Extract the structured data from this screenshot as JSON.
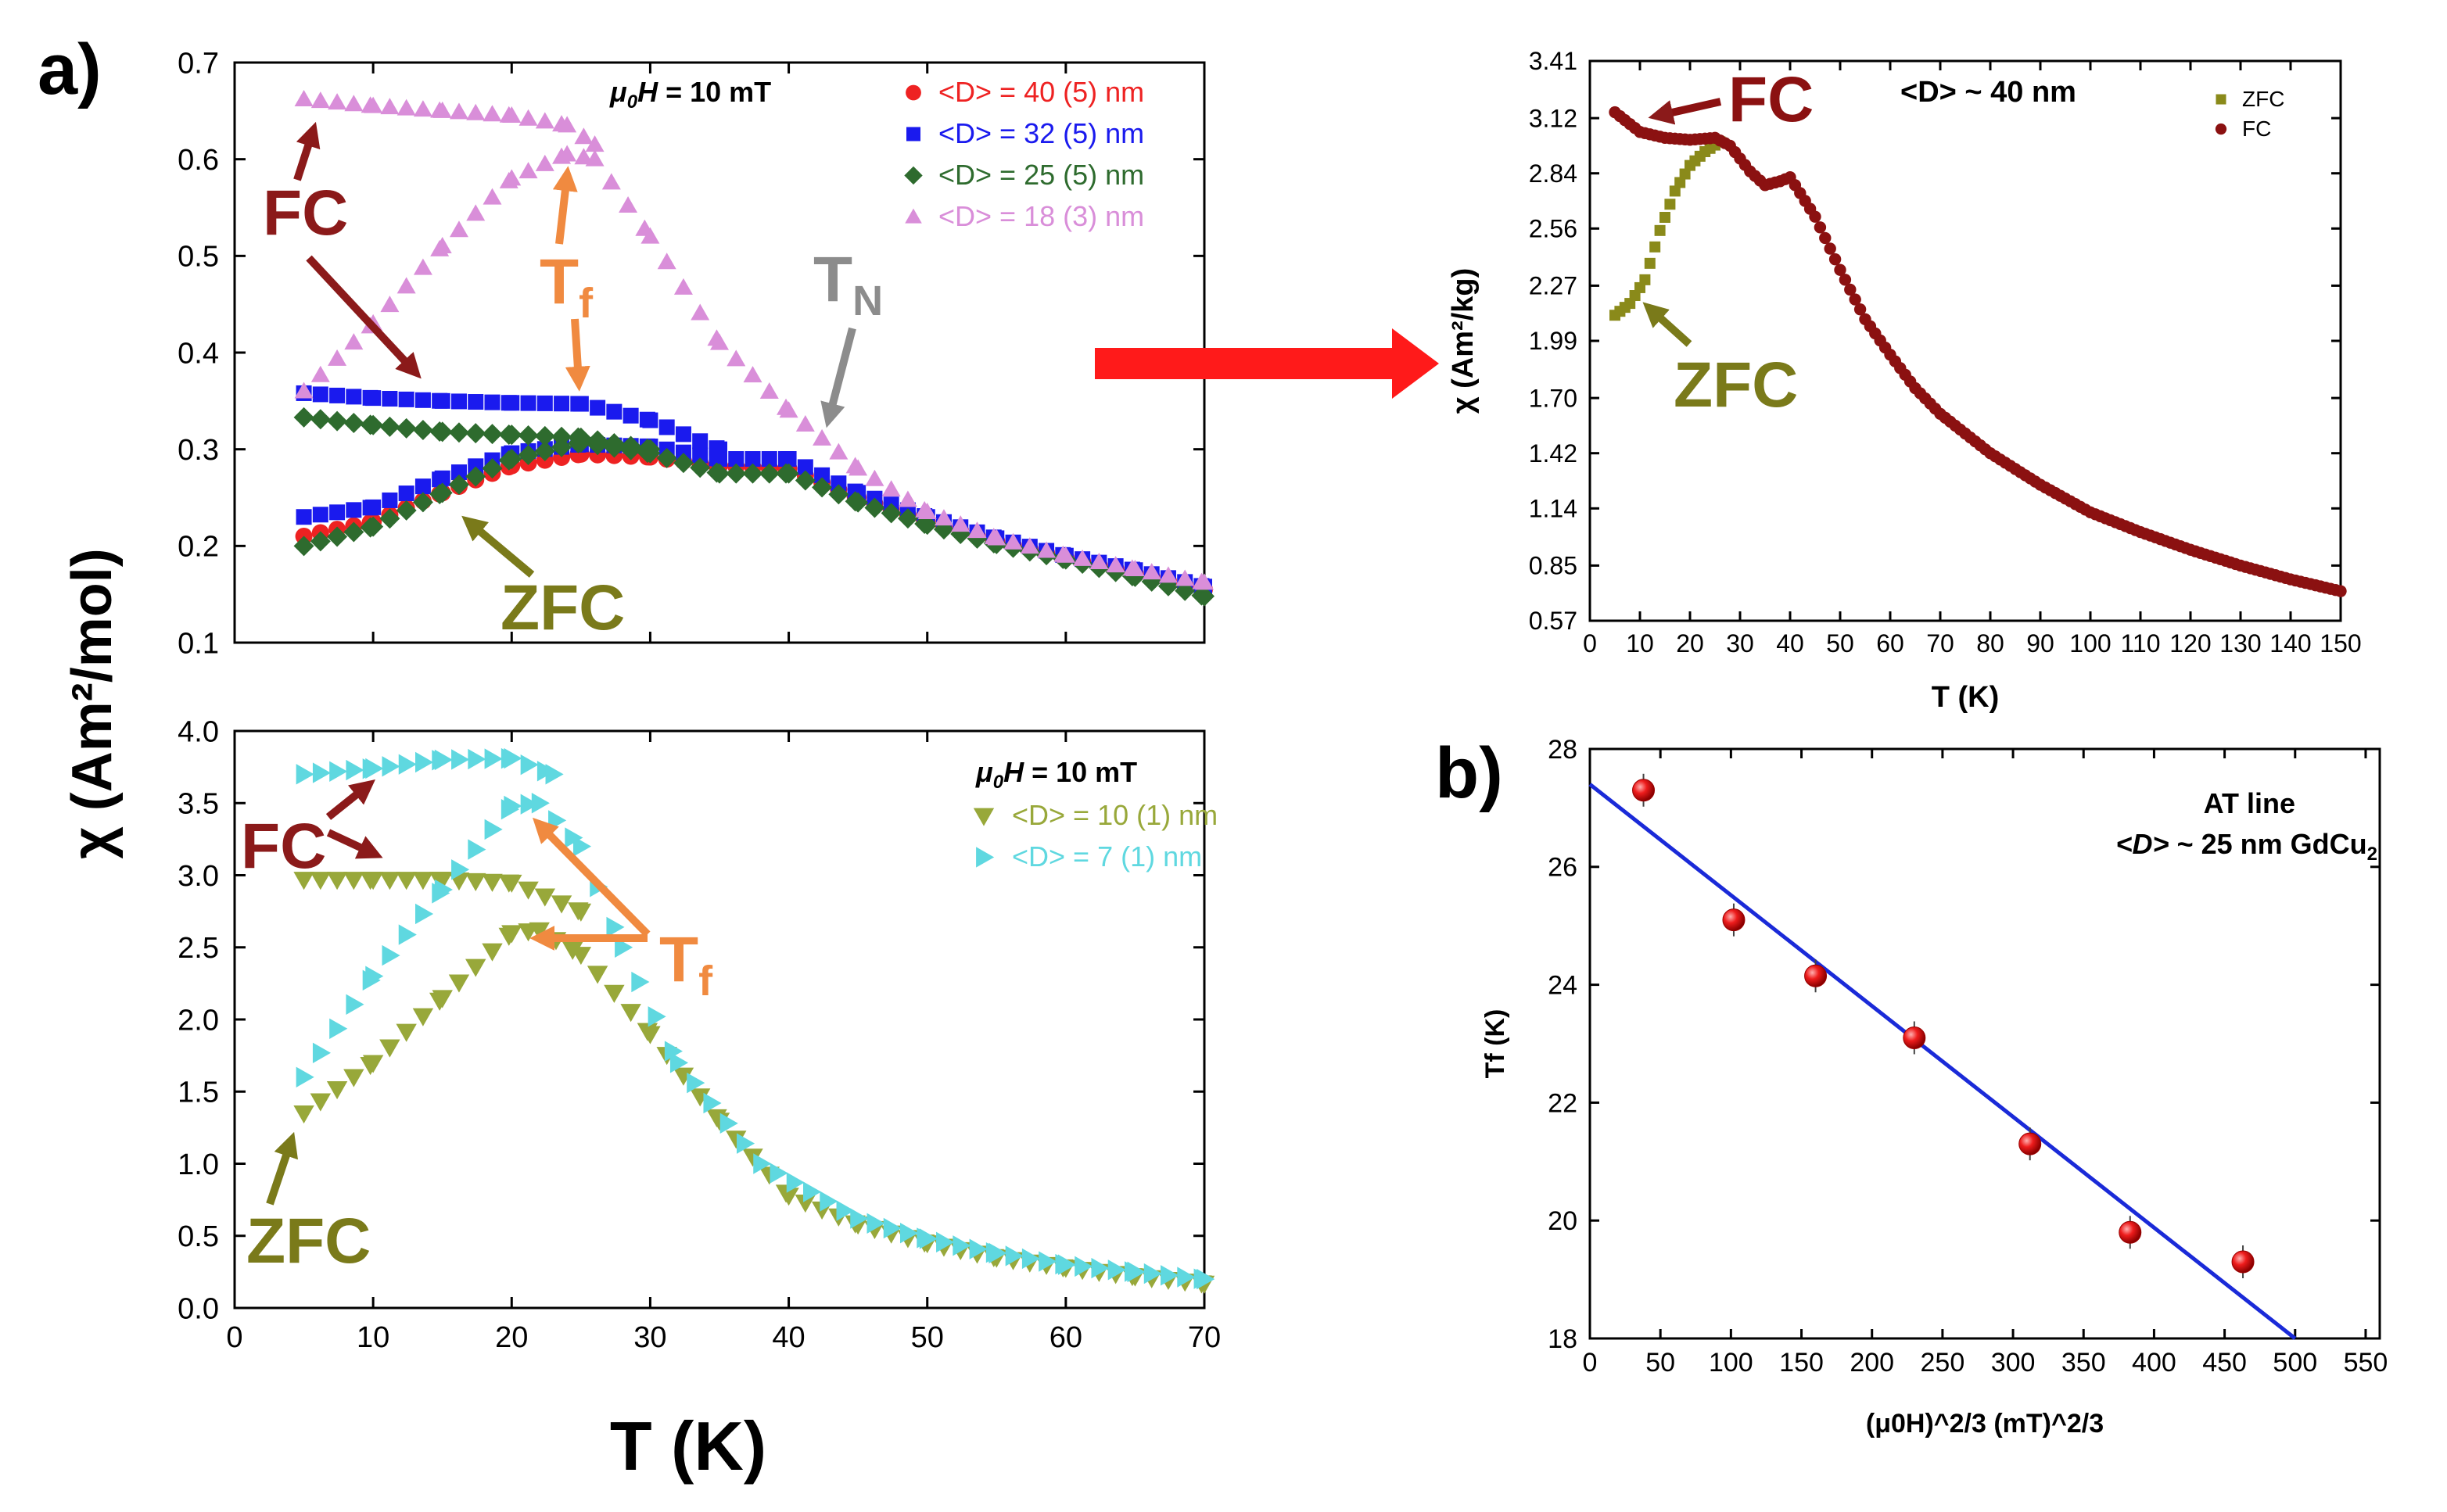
{
  "figure": {
    "panel_a_label": "a)",
    "panel_b_label": "b)",
    "shared_ylabel_a": "χ (Am²/mol)",
    "shared_xlabel_a": "T (K)",
    "colors": {
      "d40": "#ee2222",
      "d32": "#1a1aee",
      "d25": "#2e6b2e",
      "d18": "#d98ed9",
      "d10": "#98a83a",
      "d7": "#5fd8e0",
      "fc_arrow": "#8b1a1a",
      "zfc_arrow": "#7a7a1a",
      "tf_arrow": "#f08a40",
      "tn_arrow": "#8c8c8c",
      "big_arrow": "#ff1a1a",
      "fit_line": "#1a2ad8",
      "tf_points": "#ee1c1c",
      "zfc_b": "#8a8a1a",
      "fc_b": "#8b1111"
    }
  },
  "chart_data": [
    {
      "id": "a_top",
      "type": "scatter",
      "title": "",
      "xlabel": "T (K)",
      "ylabel": "χ (Am²/mol)",
      "xlim": [
        0,
        70
      ],
      "ylim": [
        0.1,
        0.7
      ],
      "xticks": [
        0,
        10,
        20,
        30,
        40,
        50,
        60,
        70
      ],
      "yticks": [
        "0.1",
        "0.2",
        "0.3",
        "0.4",
        "0.5",
        "0.6",
        "0.7"
      ],
      "show_xticklabels": false,
      "field_label": "μ0H = 10 mT",
      "legend": [
        "<D> = 40 (5) nm",
        "<D> = 32 (5) nm",
        "<D> = 25 (5) nm",
        "<D> = 18 (3) nm"
      ],
      "annotations": {
        "fc": "FC",
        "zfc": "ZFC",
        "tf": "Tf",
        "tn": "TN"
      },
      "series": [
        {
          "name": "<D> = 40 (5) nm ZFC",
          "marker": "circle",
          "color": "#ee2222",
          "points": [
            [
              5,
              0.21
            ],
            [
              10,
              0.225
            ],
            [
              15,
              0.255
            ],
            [
              20,
              0.283
            ],
            [
              25,
              0.295
            ],
            [
              30,
              0.292
            ],
            [
              35,
              0.283
            ],
            [
              40,
              0.28
            ],
            [
              45,
              0.25
            ],
            [
              50,
              0.225
            ],
            [
              55,
              0.205
            ],
            [
              60,
              0.188
            ],
            [
              65,
              0.172
            ],
            [
              70,
              0.155
            ]
          ]
        },
        {
          "name": "<D> = 32 (5) nm ZFC",
          "marker": "square",
          "color": "#1a1aee",
          "points": [
            [
              5,
              0.23
            ],
            [
              10,
              0.24
            ],
            [
              15,
              0.27
            ],
            [
              20,
              0.296
            ],
            [
              25,
              0.305
            ],
            [
              30,
              0.303
            ],
            [
              35,
              0.29
            ],
            [
              40,
              0.29
            ],
            [
              45,
              0.255
            ],
            [
              50,
              0.23
            ],
            [
              55,
              0.208
            ],
            [
              60,
              0.19
            ],
            [
              65,
              0.175
            ],
            [
              70,
              0.158
            ]
          ]
        },
        {
          "name": "<D> = 32 (5) nm FC",
          "marker": "square",
          "color": "#1a1aee",
          "points": [
            [
              5,
              0.358
            ],
            [
              10,
              0.353
            ],
            [
              15,
              0.35
            ],
            [
              20,
              0.348
            ],
            [
              25,
              0.347
            ],
            [
              30,
              0.33
            ],
            [
              35,
              0.3
            ]
          ]
        },
        {
          "name": "<D> = 25 (5) nm ZFC",
          "marker": "diamond",
          "color": "#2e6b2e",
          "points": [
            [
              5,
              0.2
            ],
            [
              10,
              0.22
            ],
            [
              15,
              0.255
            ],
            [
              20,
              0.29
            ],
            [
              25,
              0.307
            ],
            [
              30,
              0.296
            ],
            [
              35,
              0.275
            ],
            [
              40,
              0.275
            ],
            [
              45,
              0.245
            ],
            [
              50,
              0.222
            ],
            [
              55,
              0.202
            ],
            [
              60,
              0.186
            ],
            [
              65,
              0.168
            ],
            [
              70,
              0.148
            ]
          ]
        },
        {
          "name": "<D> = 25 (5) nm FC",
          "marker": "diamond",
          "color": "#2e6b2e",
          "points": [
            [
              5,
              0.333
            ],
            [
              10,
              0.325
            ],
            [
              15,
              0.318
            ],
            [
              20,
              0.315
            ],
            [
              25,
              0.312
            ],
            [
              30,
              0.3
            ]
          ]
        },
        {
          "name": "<D> = 18 (3) nm ZFC",
          "marker": "triangle",
          "color": "#d98ed9",
          "points": [
            [
              5,
              0.36
            ],
            [
              10,
              0.43
            ],
            [
              15,
              0.51
            ],
            [
              20,
              0.58
            ],
            [
              24,
              0.605
            ],
            [
              26,
              0.6
            ],
            [
              30,
              0.52
            ],
            [
              35,
              0.41
            ],
            [
              40,
              0.34
            ],
            [
              45,
              0.28
            ],
            [
              50,
              0.235
            ],
            [
              55,
              0.208
            ],
            [
              60,
              0.19
            ],
            [
              65,
              0.176
            ],
            [
              70,
              0.162
            ]
          ]
        },
        {
          "name": "<D> = 18 (3) nm FC",
          "marker": "triangle",
          "color": "#d98ed9",
          "points": [
            [
              5,
              0.662
            ],
            [
              10,
              0.655
            ],
            [
              15,
              0.65
            ],
            [
              20,
              0.645
            ],
            [
              24,
              0.635
            ],
            [
              26,
              0.615
            ]
          ]
        }
      ]
    },
    {
      "id": "a_bottom",
      "type": "scatter",
      "xlabel": "T (K)",
      "ylabel": "χ (Am²/mol)",
      "xlim": [
        0,
        70
      ],
      "ylim": [
        0,
        4
      ],
      "xticks": [
        0,
        10,
        20,
        30,
        40,
        50,
        60,
        70
      ],
      "xticklabels": [
        "0",
        "10",
        "20",
        "30",
        "40",
        "50",
        "60",
        "70"
      ],
      "yticks": [
        "0.0",
        "0.5",
        "1.0",
        "1.5",
        "2.0",
        "2.5",
        "3.0",
        "3.5",
        "4.0"
      ],
      "field_label": "μ0H = 10 mT",
      "legend": [
        "<D> = 10 (1) nm",
        "<D> = 7 (1) nm"
      ],
      "annotations": {
        "fc": "FC",
        "zfc": "ZFC",
        "tf": "Tf"
      },
      "series": [
        {
          "name": "<D> = 10 (1) nm ZFC",
          "marker": "triangle-down",
          "color": "#98a83a",
          "points": [
            [
              5,
              1.35
            ],
            [
              10,
              1.7
            ],
            [
              15,
              2.15
            ],
            [
              20,
              2.6
            ],
            [
              22,
              2.62
            ],
            [
              25,
              2.45
            ],
            [
              30,
              1.9
            ],
            [
              35,
              1.3
            ],
            [
              40,
              0.78
            ],
            [
              45,
              0.58
            ],
            [
              50,
              0.45
            ],
            [
              55,
              0.35
            ],
            [
              60,
              0.28
            ],
            [
              65,
              0.22
            ],
            [
              70,
              0.17
            ]
          ]
        },
        {
          "name": "<D> = 10 (1) nm FC",
          "marker": "triangle-down",
          "color": "#98a83a",
          "points": [
            [
              5,
              2.97
            ],
            [
              10,
              2.97
            ],
            [
              15,
              2.97
            ],
            [
              20,
              2.95
            ],
            [
              25,
              2.75
            ]
          ]
        },
        {
          "name": "<D> = 7 (1) nm ZFC",
          "marker": "triangle-right",
          "color": "#5fd8e0",
          "points": [
            [
              5,
              1.6
            ],
            [
              10,
              2.3
            ],
            [
              15,
              2.9
            ],
            [
              20,
              3.48
            ],
            [
              22,
              3.5
            ],
            [
              25,
              3.2
            ],
            [
              28,
              2.5
            ],
            [
              32,
              1.7
            ],
            [
              38,
              1.0
            ],
            [
              45,
              0.62
            ],
            [
              50,
              0.48
            ],
            [
              55,
              0.38
            ],
            [
              60,
              0.3
            ],
            [
              65,
              0.25
            ],
            [
              70,
              0.2
            ]
          ]
        },
        {
          "name": "<D> = 7 (1) nm FC",
          "marker": "triangle-right",
          "color": "#5fd8e0",
          "points": [
            [
              5,
              3.7
            ],
            [
              10,
              3.74
            ],
            [
              15,
              3.8
            ],
            [
              20,
              3.81
            ],
            [
              23,
              3.7
            ]
          ]
        }
      ]
    },
    {
      "id": "inset_right",
      "type": "scatter",
      "title": "<D> ~ 40 nm",
      "xlabel": "T (K)",
      "ylabel": "χ (Am²/kg)",
      "xlim": [
        0,
        150
      ],
      "ylim": [
        0.57,
        3.41
      ],
      "xticks": [
        0,
        10,
        20,
        30,
        40,
        50,
        60,
        70,
        80,
        90,
        100,
        110,
        120,
        130,
        140,
        150
      ],
      "xticklabels": [
        "0",
        "10",
        "20",
        "30",
        "40",
        "50",
        "60",
        "70",
        "80",
        "90",
        "100",
        "110",
        "120",
        "130",
        "140",
        "150"
      ],
      "yticks": [
        "0.57",
        "0.85",
        "1.14",
        "1.42",
        "1.70",
        "1.99",
        "2.27",
        "2.56",
        "2.84",
        "3.12",
        "3.41"
      ],
      "legend": [
        "ZFC",
        "FC"
      ],
      "annotations": {
        "fc": "FC",
        "zfc": "ZFC"
      },
      "series": [
        {
          "name": "ZFC",
          "marker": "square",
          "color": "#8a8a1a",
          "points": [
            [
              5,
              2.12
            ],
            [
              8,
              2.18
            ],
            [
              11,
              2.3
            ],
            [
              14,
              2.55
            ],
            [
              17,
              2.75
            ],
            [
              20,
              2.88
            ],
            [
              23,
              2.95
            ],
            [
              26,
              3.0
            ]
          ]
        },
        {
          "name": "FC",
          "marker": "circle",
          "color": "#8b1111",
          "points": [
            [
              5,
              3.15
            ],
            [
              10,
              3.05
            ],
            [
              15,
              3.02
            ],
            [
              20,
              3.01
            ],
            [
              25,
              3.02
            ],
            [
              28,
              2.98
            ],
            [
              32,
              2.85
            ],
            [
              35,
              2.78
            ],
            [
              38,
              2.8
            ],
            [
              40,
              2.82
            ],
            [
              45,
              2.62
            ],
            [
              50,
              2.35
            ],
            [
              55,
              2.1
            ],
            [
              60,
              1.92
            ],
            [
              65,
              1.75
            ],
            [
              70,
              1.62
            ],
            [
              80,
              1.42
            ],
            [
              90,
              1.26
            ],
            [
              100,
              1.12
            ],
            [
              110,
              1.02
            ],
            [
              120,
              0.93
            ],
            [
              130,
              0.85
            ],
            [
              140,
              0.78
            ],
            [
              150,
              0.72
            ]
          ]
        }
      ]
    },
    {
      "id": "b",
      "type": "scatter",
      "title": "AT line",
      "subtitle": "<D> ~ 25 nm GdCu2",
      "xlabel": "(μ0H)^2/3 (mT)^2/3",
      "ylabel": "Tf (K)",
      "xlim": [
        0,
        560
      ],
      "ylim": [
        18,
        28
      ],
      "xticks": [
        0,
        50,
        100,
        150,
        200,
        250,
        300,
        350,
        400,
        450,
        500,
        550
      ],
      "xticklabels": [
        "0",
        "50",
        "100",
        "150",
        "200",
        "250",
        "300",
        "350",
        "400",
        "450",
        "500",
        "550"
      ],
      "yticks": [
        "18",
        "20",
        "22",
        "24",
        "26",
        "28"
      ],
      "fit": {
        "x": [
          0,
          500
        ],
        "y": [
          27.4,
          18.0
        ]
      },
      "series": [
        {
          "name": "Tf",
          "marker": "sphere",
          "color": "#ee1c1c",
          "points": [
            [
              38,
              27.3
            ],
            [
              102,
              25.1
            ],
            [
              160,
              24.15
            ],
            [
              230,
              23.1
            ],
            [
              312,
              21.3
            ],
            [
              383,
              19.8
            ],
            [
              463,
              19.3
            ]
          ]
        }
      ]
    }
  ]
}
